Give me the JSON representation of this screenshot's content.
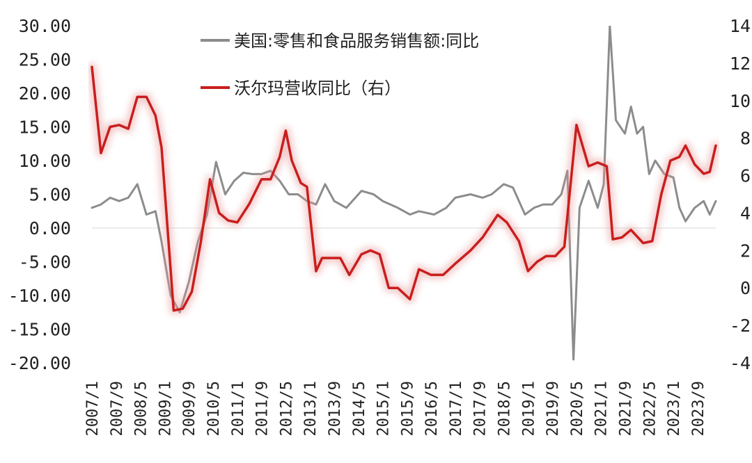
{
  "chart_data": {
    "type": "line",
    "legend": [
      {
        "label": "美国:零售和食品服务销售额:同比",
        "color": "#8c8c8c",
        "axis": "left"
      },
      {
        "label": "沃尔玛营收同比（右）",
        "color": "#c81e1e",
        "axis": "right"
      }
    ],
    "legend_position": "top",
    "grid": false,
    "y_left": {
      "ylim": [
        -20,
        30
      ],
      "ticks": [
        "30.00",
        "25.00",
        "20.00",
        "15.00",
        "10.00",
        "5.00",
        "0.00",
        "-5.00",
        "-10.00",
        "-15.00",
        "-20.00"
      ]
    },
    "y_right": {
      "ylim": [
        -4,
        14
      ],
      "ticks": [
        "14",
        "12",
        "10",
        "8",
        "6",
        "4",
        "2",
        "0",
        "-2",
        "-4"
      ]
    },
    "x_ticks": [
      "2007/1",
      "2007/9",
      "2008/5",
      "2009/1",
      "2009/9",
      "2010/5",
      "2011/1",
      "2011/9",
      "2012/5",
      "2013/1",
      "2013/9",
      "2014/5",
      "2015/1",
      "2015/9",
      "2016/5",
      "2017/1",
      "2017/9",
      "2018/5",
      "2019/1",
      "2019/9",
      "2020/5",
      "2021/1",
      "2021/9",
      "2022/5",
      "2023/1",
      "2023/9"
    ],
    "x_range": [
      "2007/1",
      "2024/3"
    ],
    "series": [
      {
        "name": "美国:零售和食品服务销售额:同比",
        "axis": "left",
        "color": "#8c8c8c",
        "points": [
          [
            "2007/1",
            3
          ],
          [
            "2007/4",
            3.5
          ],
          [
            "2007/7",
            4.5
          ],
          [
            "2007/10",
            4
          ],
          [
            "2008/1",
            4.5
          ],
          [
            "2008/4",
            6.5
          ],
          [
            "2008/7",
            2
          ],
          [
            "2008/10",
            2.5
          ],
          [
            "2008/12",
            -2
          ],
          [
            "2009/3",
            -10
          ],
          [
            "2009/6",
            -12.5
          ],
          [
            "2009/9",
            -8
          ],
          [
            "2009/12",
            -2
          ],
          [
            "2010/3",
            2
          ],
          [
            "2010/6",
            9.8
          ],
          [
            "2010/9",
            5
          ],
          [
            "2010/12",
            7
          ],
          [
            "2011/3",
            8.2
          ],
          [
            "2011/6",
            8
          ],
          [
            "2011/9",
            8
          ],
          [
            "2011/12",
            8.5
          ],
          [
            "2012/3",
            7
          ],
          [
            "2012/6",
            5
          ],
          [
            "2012/9",
            5
          ],
          [
            "2012/12",
            4
          ],
          [
            "2013/3",
            3.5
          ],
          [
            "2013/6",
            6.5
          ],
          [
            "2013/9",
            4
          ],
          [
            "2014/1",
            3
          ],
          [
            "2014/6",
            5.5
          ],
          [
            "2014/10",
            5
          ],
          [
            "2015/1",
            4
          ],
          [
            "2015/6",
            3
          ],
          [
            "2015/10",
            2
          ],
          [
            "2016/1",
            2.5
          ],
          [
            "2016/6",
            2
          ],
          [
            "2016/10",
            3
          ],
          [
            "2017/1",
            4.5
          ],
          [
            "2017/6",
            5
          ],
          [
            "2017/10",
            4.5
          ],
          [
            "2018/1",
            5
          ],
          [
            "2018/5",
            6.5
          ],
          [
            "2018/8",
            6
          ],
          [
            "2018/12",
            2
          ],
          [
            "2019/3",
            3
          ],
          [
            "2019/6",
            3.5
          ],
          [
            "2019/9",
            3.5
          ],
          [
            "2019/12",
            5
          ],
          [
            "2020/2",
            8.5
          ],
          [
            "2020/4",
            -19.5
          ],
          [
            "2020/6",
            3
          ],
          [
            "2020/9",
            7
          ],
          [
            "2020/12",
            3
          ],
          [
            "2021/2",
            6.5
          ],
          [
            "2021/4",
            30
          ],
          [
            "2021/6",
            16
          ],
          [
            "2021/9",
            14
          ],
          [
            "2021/11",
            18
          ],
          [
            "2022/1",
            14
          ],
          [
            "2022/3",
            15
          ],
          [
            "2022/5",
            8
          ],
          [
            "2022/7",
            10
          ],
          [
            "2022/10",
            8
          ],
          [
            "2023/1",
            7.5
          ],
          [
            "2023/3",
            3
          ],
          [
            "2023/5",
            1
          ],
          [
            "2023/8",
            3
          ],
          [
            "2023/11",
            4
          ],
          [
            "2024/1",
            2
          ],
          [
            "2024/3",
            4
          ]
        ]
      },
      {
        "name": "沃尔玛营收同比（右）",
        "axis": "right",
        "color": "#c81e1e",
        "points": [
          [
            "2007/1",
            11.8
          ],
          [
            "2007/4",
            7.2
          ],
          [
            "2007/7",
            8.6
          ],
          [
            "2007/10",
            8.7
          ],
          [
            "2008/1",
            8.5
          ],
          [
            "2008/4",
            10.2
          ],
          [
            "2008/7",
            10.2
          ],
          [
            "2008/10",
            9.2
          ],
          [
            "2008/12",
            7.5
          ],
          [
            "2009/4",
            -1.2
          ],
          [
            "2009/7",
            -1.1
          ],
          [
            "2009/10",
            -0.2
          ],
          [
            "2010/1",
            2.5
          ],
          [
            "2010/4",
            5.8
          ],
          [
            "2010/7",
            4
          ],
          [
            "2010/10",
            3.6
          ],
          [
            "2011/1",
            3.5
          ],
          [
            "2011/5",
            4.5
          ],
          [
            "2011/9",
            5.8
          ],
          [
            "2011/12",
            5.8
          ],
          [
            "2012/3",
            7
          ],
          [
            "2012/5",
            8.4
          ],
          [
            "2012/7",
            6.8
          ],
          [
            "2012/10",
            5.6
          ],
          [
            "2012/12",
            5.4
          ],
          [
            "2013/3",
            0.9
          ],
          [
            "2013/5",
            1.6
          ],
          [
            "2013/8",
            1.6
          ],
          [
            "2013/11",
            1.6
          ],
          [
            "2014/2",
            0.7
          ],
          [
            "2014/6",
            1.8
          ],
          [
            "2014/9",
            2
          ],
          [
            "2014/12",
            1.8
          ],
          [
            "2015/3",
            0
          ],
          [
            "2015/6",
            0
          ],
          [
            "2015/10",
            -0.6
          ],
          [
            "2016/1",
            1
          ],
          [
            "2016/5",
            0.7
          ],
          [
            "2016/9",
            0.7
          ],
          [
            "2017/1",
            1.3
          ],
          [
            "2017/6",
            2
          ],
          [
            "2017/10",
            2.7
          ],
          [
            "2018/3",
            3.9
          ],
          [
            "2018/6",
            3.5
          ],
          [
            "2018/10",
            2.5
          ],
          [
            "2019/1",
            0.9
          ],
          [
            "2019/4",
            1.4
          ],
          [
            "2019/7",
            1.7
          ],
          [
            "2019/10",
            1.7
          ],
          [
            "2020/1",
            2.2
          ],
          [
            "2020/5",
            8.7
          ],
          [
            "2020/9",
            6.5
          ],
          [
            "2020/12",
            6.7
          ],
          [
            "2021/3",
            6.5
          ],
          [
            "2021/5",
            2.6
          ],
          [
            "2021/8",
            2.7
          ],
          [
            "2021/11",
            3.1
          ],
          [
            "2022/3",
            2.4
          ],
          [
            "2022/6",
            2.5
          ],
          [
            "2022/9",
            5
          ],
          [
            "2022/12",
            6.8
          ],
          [
            "2023/3",
            7
          ],
          [
            "2023/5",
            7.6
          ],
          [
            "2023/8",
            6.6
          ],
          [
            "2023/11",
            6.1
          ],
          [
            "2024/1",
            6.2
          ],
          [
            "2024/3",
            7.6
          ]
        ]
      }
    ]
  }
}
